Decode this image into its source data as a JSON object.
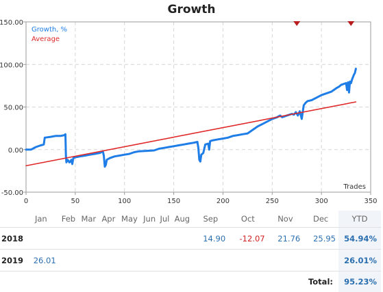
{
  "chart_data": {
    "type": "line",
    "title": "Growth",
    "xlabel": "Trades",
    "ylabel": "",
    "xlim": [
      0,
      350
    ],
    "ylim": [
      -50,
      150
    ],
    "x_ticks": [
      "0",
      "50",
      "100",
      "150",
      "200",
      "250",
      "300",
      "350"
    ],
    "y_ticks": [
      "-50.00",
      "0.00",
      "50.00",
      "100.00",
      "150.00"
    ],
    "grid": true,
    "legend_position": "top-left",
    "series": [
      {
        "name": "Growth, %",
        "color": "#1e7de6",
        "x": [
          0,
          5,
          10,
          15,
          18,
          19,
          25,
          30,
          35,
          39,
          40,
          40.5,
          41,
          42,
          43,
          44,
          45,
          46,
          47,
          48,
          50,
          55,
          60,
          65,
          70,
          75,
          78,
          79,
          80,
          81,
          82,
          85,
          90,
          95,
          100,
          105,
          110,
          115,
          130,
          135,
          140,
          145,
          150,
          155,
          160,
          165,
          170,
          174,
          175,
          176,
          177,
          178,
          180,
          182,
          185,
          186,
          187,
          190,
          195,
          200,
          205,
          210,
          215,
          220,
          225,
          230,
          235,
          240,
          245,
          250,
          255,
          258,
          260,
          265,
          270,
          272,
          274,
          276,
          278,
          280,
          282,
          284,
          286,
          290,
          295,
          300,
          305,
          310,
          315,
          318,
          320,
          325,
          326,
          327,
          328,
          329,
          330,
          331,
          332,
          333,
          334,
          335
        ],
        "values": [
          0,
          0,
          3,
          5,
          6,
          14,
          15,
          16,
          16,
          17,
          18,
          -7,
          -15,
          -12,
          -13,
          -15,
          -14,
          -12,
          -17,
          -10,
          -9,
          -8,
          -7,
          -6,
          -5,
          -4,
          -2,
          -7,
          -20,
          -18,
          -12,
          -10,
          -8,
          -7,
          -6,
          -5,
          -3,
          -2,
          -1,
          1,
          2,
          3,
          4,
          5,
          6,
          7,
          8,
          9,
          2,
          -12,
          -14,
          -6,
          -4,
          6,
          7,
          0,
          10,
          11,
          12,
          13,
          14,
          16,
          17,
          18,
          19,
          23,
          27,
          30,
          33,
          36,
          38,
          40,
          38,
          40,
          42,
          41,
          44,
          40,
          45,
          36,
          52,
          55,
          57,
          58,
          61,
          64,
          66,
          68,
          72,
          74,
          76,
          78,
          70,
          79,
          67,
          80,
          78,
          82,
          85,
          88,
          90,
          95
        ]
      },
      {
        "name": "Average",
        "color": "#e02828",
        "x": [
          0,
          335
        ],
        "values": [
          -19,
          56
        ]
      }
    ],
    "markers": [
      {
        "type": "triangle-down",
        "color": "#b81c1c",
        "x": 275,
        "y": 150
      },
      {
        "type": "triangle-down",
        "color": "#b81c1c",
        "x": 330,
        "y": 150
      }
    ]
  },
  "table": {
    "months": [
      "Jan",
      "Feb",
      "Mar",
      "Apr",
      "May",
      "Jun",
      "Jul",
      "Aug",
      "Sep",
      "Oct",
      "Nov",
      "Dec"
    ],
    "ytd_header": "YTD",
    "rows": [
      {
        "year": "2018",
        "values": [
          "",
          "",
          "",
          "",
          "",
          "",
          "",
          "",
          "14.90",
          "-12.07",
          "21.76",
          "25.95"
        ],
        "ytd": "54.94%"
      },
      {
        "year": "2019",
        "values": [
          "26.01",
          "",
          "",
          "",
          "",
          "",
          "",
          "",
          "",
          "",
          "",
          ""
        ],
        "ytd": "26.01%"
      }
    ],
    "total_label": "Total:",
    "total_value": "95.23%"
  }
}
